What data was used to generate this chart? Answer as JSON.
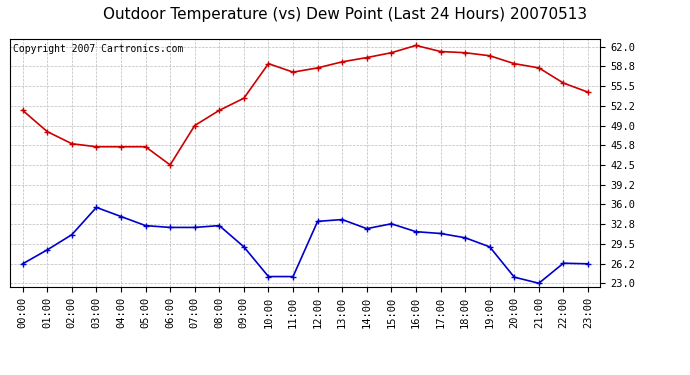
{
  "title": "Outdoor Temperature (vs) Dew Point (Last 24 Hours) 20070513",
  "copyright_text": "Copyright 2007 Cartronics.com",
  "x_labels": [
    "00:00",
    "01:00",
    "02:00",
    "03:00",
    "04:00",
    "05:00",
    "06:00",
    "07:00",
    "08:00",
    "09:00",
    "10:00",
    "11:00",
    "12:00",
    "13:00",
    "14:00",
    "15:00",
    "16:00",
    "17:00",
    "18:00",
    "19:00",
    "20:00",
    "21:00",
    "22:00",
    "23:00"
  ],
  "red_data": [
    51.5,
    48.0,
    46.0,
    45.5,
    45.5,
    45.5,
    42.5,
    49.0,
    51.5,
    53.5,
    59.2,
    57.8,
    58.5,
    59.5,
    60.2,
    61.0,
    62.2,
    61.2,
    61.0,
    60.5,
    59.2,
    58.5,
    56.0,
    54.5
  ],
  "blue_data": [
    26.2,
    28.5,
    31.0,
    35.5,
    34.0,
    32.5,
    32.2,
    32.2,
    32.5,
    29.0,
    24.1,
    24.1,
    33.2,
    33.5,
    32.0,
    32.8,
    31.5,
    31.2,
    30.5,
    29.0,
    24.0,
    23.0,
    26.3,
    26.2
  ],
  "red_color": "#CC0000",
  "blue_color": "#0000CC",
  "background_color": "#FFFFFF",
  "grid_color": "#BBBBBB",
  "y_ticks": [
    23.0,
    26.2,
    29.5,
    32.8,
    36.0,
    39.2,
    42.5,
    45.8,
    49.0,
    52.2,
    55.5,
    58.8,
    62.0
  ],
  "ylim": [
    22.4,
    63.2
  ],
  "title_fontsize": 11,
  "tick_fontsize": 7.5,
  "copyright_fontsize": 7,
  "markersize": 3,
  "linewidth": 1.2
}
